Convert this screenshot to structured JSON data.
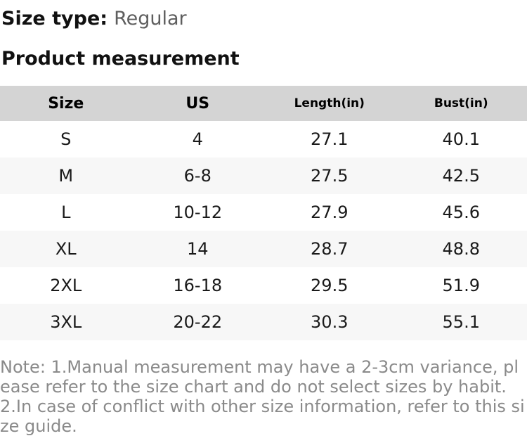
{
  "header": {
    "size_type_label": "Size type:",
    "size_type_value": "Regular",
    "section_title": "Product measurement"
  },
  "table": {
    "columns": [
      {
        "key": "size",
        "label": "Size"
      },
      {
        "key": "us",
        "label": "US"
      },
      {
        "key": "length_in",
        "label": "Length(in)"
      },
      {
        "key": "bust_in",
        "label": "Bust(in)"
      }
    ],
    "rows": [
      {
        "size": "S",
        "us": "4",
        "length_in": "27.1",
        "bust_in": "40.1"
      },
      {
        "size": "M",
        "us": "6-8",
        "length_in": "27.5",
        "bust_in": "42.5"
      },
      {
        "size": "L",
        "us": "10-12",
        "length_in": "27.9",
        "bust_in": "45.6"
      },
      {
        "size": "XL",
        "us": "14",
        "length_in": "28.7",
        "bust_in": "48.8"
      },
      {
        "size": "2XL",
        "us": "16-18",
        "length_in": "29.5",
        "bust_in": "51.9"
      },
      {
        "size": "3XL",
        "us": "20-22",
        "length_in": "30.3",
        "bust_in": "55.1"
      }
    ]
  },
  "note": "Note: 1.Manual measurement may have a 2-3cm variance, please refer to the size chart and do not select sizes by habit. 2.In case of conflict with other size information, refer to this size guide.",
  "colors": {
    "table_header_bg": "#d4d4d4",
    "row_alt_bg": "#f7f7f7",
    "text_primary": "#111111",
    "size_type_value_text": "#5e5e5e",
    "note_text": "#8a8a8a"
  }
}
